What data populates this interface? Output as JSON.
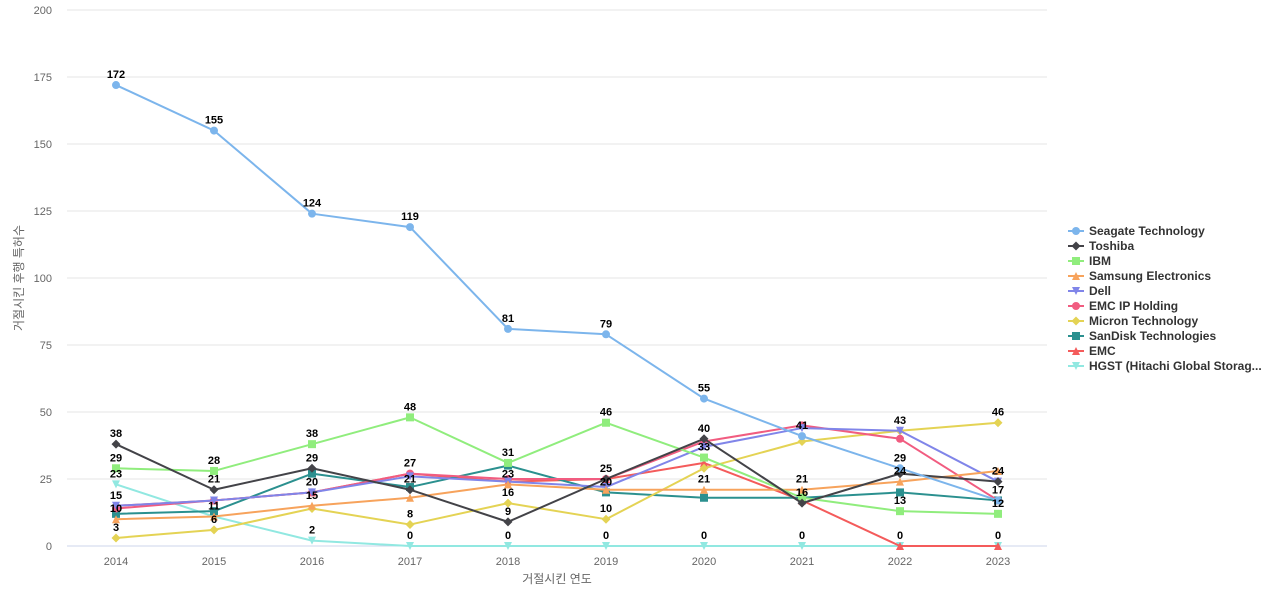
{
  "chart_data": {
    "type": "line",
    "title": "",
    "xlabel": "거절시킨 연도",
    "ylabel": "거절시킨 후행 특허수",
    "ylim": [
      0,
      200
    ],
    "yticks": [
      0,
      25,
      50,
      75,
      100,
      125,
      150,
      175,
      200
    ],
    "categories": [
      "2014",
      "2015",
      "2016",
      "2017",
      "2018",
      "2019",
      "2020",
      "2021",
      "2022",
      "2023"
    ],
    "grid": true,
    "legend_position": "right",
    "series": [
      {
        "name": "Seagate Technology",
        "color": "#7cb5ec",
        "marker": "circle",
        "values": [
          172,
          155,
          124,
          119,
          81,
          79,
          55,
          41,
          29,
          17
        ],
        "labels": true
      },
      {
        "name": "Toshiba",
        "color": "#434348",
        "marker": "diamond",
        "values": [
          38,
          21,
          29,
          21,
          9,
          25,
          40,
          16,
          27,
          24
        ],
        "labels": true
      },
      {
        "name": "IBM",
        "color": "#90ed7d",
        "marker": "square",
        "values": [
          29,
          28,
          38,
          48,
          31,
          46,
          33,
          18,
          13,
          12
        ],
        "labels": true
      },
      {
        "name": "Samsung Electronics",
        "color": "#f7a35c",
        "marker": "triangle",
        "values": [
          10,
          11,
          15,
          18,
          23,
          21,
          21,
          21,
          24,
          28
        ],
        "labels": false
      },
      {
        "name": "Dell",
        "color": "#8085e9",
        "marker": "triangle-down",
        "values": [
          15,
          17,
          20,
          26,
          24,
          22,
          37,
          44,
          43,
          24
        ],
        "labels": false
      },
      {
        "name": "EMC IP Holding",
        "color": "#f15c80",
        "marker": "circle",
        "values": [
          14,
          17,
          20,
          27,
          25,
          25,
          39,
          45,
          40,
          17
        ],
        "labels": false
      },
      {
        "name": "Micron Technology",
        "color": "#e4d354",
        "marker": "diamond",
        "values": [
          3,
          6,
          14,
          8,
          16,
          10,
          29,
          39,
          43,
          46
        ],
        "labels": true
      },
      {
        "name": "SanDisk Technologies",
        "color": "#2b908f",
        "marker": "square",
        "values": [
          12,
          13,
          27,
          22,
          30,
          20,
          18,
          18,
          20,
          17
        ],
        "labels": false
      },
      {
        "name": "EMC",
        "color": "#f45b5b",
        "marker": "triangle",
        "values": [
          15,
          17,
          20,
          27,
          24,
          25,
          31,
          17,
          0,
          0
        ],
        "labels": false
      },
      {
        "name": "HGST (Hitachi Global Storag...",
        "color": "#91e8e1",
        "marker": "triangle-down",
        "values": [
          23,
          11,
          2,
          0,
          0,
          0,
          0,
          0,
          0,
          0
        ],
        "labels": true
      }
    ],
    "data_labels": [
      {
        "x": "2014",
        "text": "172",
        "value": 172
      },
      {
        "x": "2015",
        "text": "155",
        "value": 155
      },
      {
        "x": "2016",
        "text": "124",
        "value": 124
      },
      {
        "x": "2017",
        "text": "119",
        "value": 119
      },
      {
        "x": "2018",
        "text": "81",
        "value": 81
      },
      {
        "x": "2019",
        "text": "79",
        "value": 79
      },
      {
        "x": "2020",
        "text": "55",
        "value": 55
      },
      {
        "x": "2014",
        "text": "38",
        "value": 38
      },
      {
        "x": "2014",
        "text": "29",
        "value": 29
      },
      {
        "x": "2014",
        "text": "23",
        "value": 23
      },
      {
        "x": "2014",
        "text": "15",
        "value": 15
      },
      {
        "x": "2014",
        "text": "10",
        "value": 10
      },
      {
        "x": "2014",
        "text": "3",
        "value": 3
      },
      {
        "x": "2015",
        "text": "28",
        "value": 28
      },
      {
        "x": "2015",
        "text": "21",
        "value": 21
      },
      {
        "x": "2015",
        "text": "11",
        "value": 11
      },
      {
        "x": "2015",
        "text": "6",
        "value": 6
      },
      {
        "x": "2016",
        "text": "38",
        "value": 38
      },
      {
        "x": "2016",
        "text": "29",
        "value": 29
      },
      {
        "x": "2016",
        "text": "20",
        "value": 20
      },
      {
        "x": "2016",
        "text": "15",
        "value": 15
      },
      {
        "x": "2016",
        "text": "2",
        "value": 2
      },
      {
        "x": "2017",
        "text": "48",
        "value": 48
      },
      {
        "x": "2017",
        "text": "27",
        "value": 27
      },
      {
        "x": "2017",
        "text": "21",
        "value": 21
      },
      {
        "x": "2017",
        "text": "8",
        "value": 8
      },
      {
        "x": "2017",
        "text": "0",
        "value": 0
      },
      {
        "x": "2018",
        "text": "31",
        "value": 31
      },
      {
        "x": "2018",
        "text": "23",
        "value": 23
      },
      {
        "x": "2018",
        "text": "16",
        "value": 16
      },
      {
        "x": "2018",
        "text": "9",
        "value": 9
      },
      {
        "x": "2018",
        "text": "0",
        "value": 0
      },
      {
        "x": "2019",
        "text": "46",
        "value": 46
      },
      {
        "x": "2019",
        "text": "25",
        "value": 25
      },
      {
        "x": "2019",
        "text": "20",
        "value": 20
      },
      {
        "x": "2019",
        "text": "10",
        "value": 10
      },
      {
        "x": "2019",
        "text": "0",
        "value": 0
      },
      {
        "x": "2020",
        "text": "40",
        "value": 40
      },
      {
        "x": "2020",
        "text": "33",
        "value": 33
      },
      {
        "x": "2020",
        "text": "21",
        "value": 21
      },
      {
        "x": "2020",
        "text": "0",
        "value": 0
      },
      {
        "x": "2021",
        "text": "41",
        "value": 41
      },
      {
        "x": "2021",
        "text": "21",
        "value": 21
      },
      {
        "x": "2021",
        "text": "16",
        "value": 16
      },
      {
        "x": "2021",
        "text": "0",
        "value": 0
      },
      {
        "x": "2022",
        "text": "43",
        "value": 43
      },
      {
        "x": "2022",
        "text": "29",
        "value": 29
      },
      {
        "x": "2022",
        "text": "24",
        "value": 24
      },
      {
        "x": "2022",
        "text": "13",
        "value": 13
      },
      {
        "x": "2022",
        "text": "0",
        "value": 0
      },
      {
        "x": "2023",
        "text": "46",
        "value": 46
      },
      {
        "x": "2023",
        "text": "24",
        "value": 24
      },
      {
        "x": "2023",
        "text": "17",
        "value": 17
      },
      {
        "x": "2023",
        "text": "12",
        "value": 12
      },
      {
        "x": "2023",
        "text": "0",
        "value": 0
      }
    ]
  }
}
